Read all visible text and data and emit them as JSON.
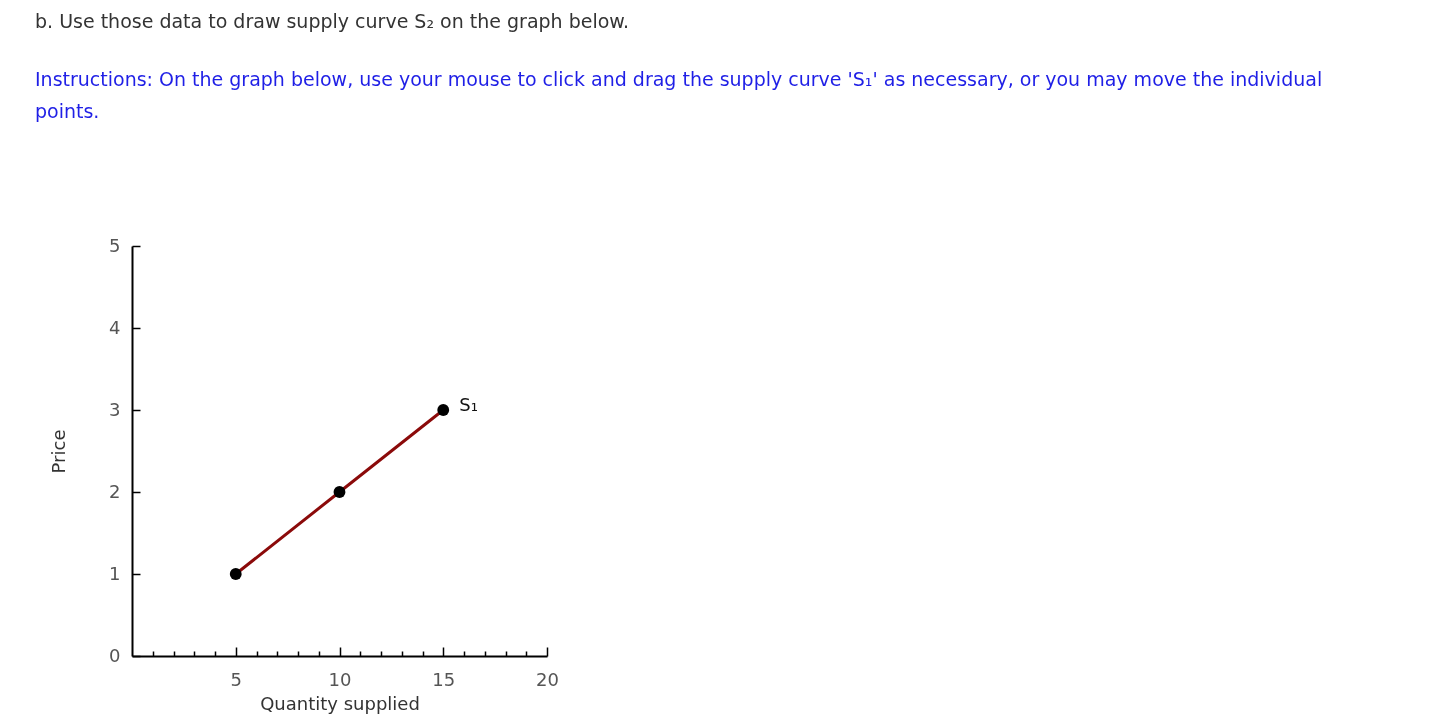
{
  "chart_data": {
    "type": "line",
    "title": "b. Use those data to draw supply curve S₂ on the graph below.",
    "annotations": [
      "Instructions: On the graph below, use your mouse to click and drag the supply curve 'S₁' as necessary, or you may move the individual points."
    ],
    "xlabel": "Quantity supplied",
    "ylabel": "Price",
    "x": [
      5,
      10,
      15
    ],
    "series": [
      {
        "name": "S₁",
        "color": "#8b0a0a",
        "values": [
          1,
          2,
          3
        ]
      }
    ],
    "xlim": [
      0,
      20
    ],
    "ylim": [
      0,
      5
    ],
    "xticks": [
      {
        "value": 1,
        "label": null
      },
      {
        "value": 2,
        "label": null
      },
      {
        "value": 3,
        "label": null
      },
      {
        "value": 4,
        "label": null
      },
      5,
      {
        "value": 6,
        "label": null
      },
      {
        "value": 7,
        "label": null
      },
      {
        "value": 8,
        "label": null
      },
      {
        "value": 9,
        "label": null
      },
      10,
      {
        "value": 11,
        "label": null
      },
      {
        "value": 12,
        "label": null
      },
      {
        "value": 13,
        "label": null
      },
      {
        "value": 14,
        "label": null
      },
      15,
      {
        "value": 16,
        "label": null
      },
      {
        "value": 17,
        "label": null
      },
      {
        "value": 18,
        "label": null
      },
      {
        "value": 19,
        "label": null
      },
      20
    ],
    "yticks": [
      0,
      1,
      2,
      3,
      4,
      5
    ],
    "marker": "circle",
    "line_style": "solid",
    "grid": false
  }
}
